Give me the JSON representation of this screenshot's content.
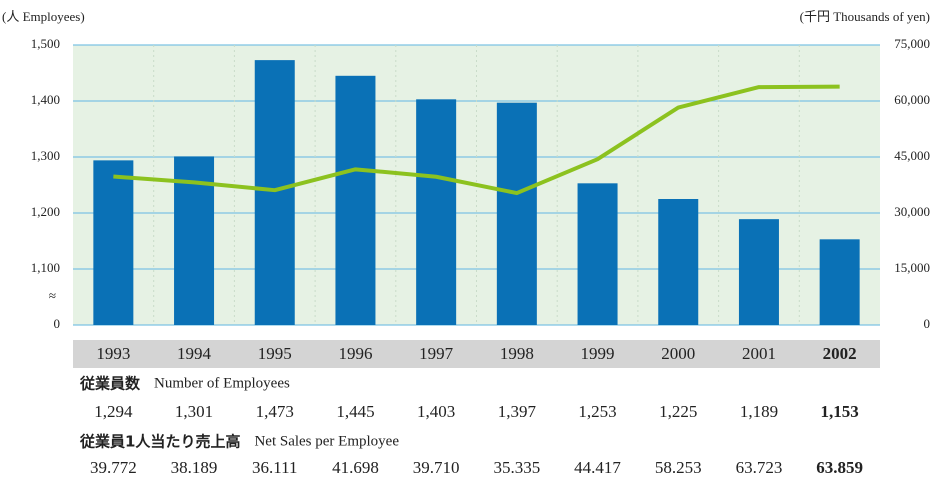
{
  "chart_data": {
    "type": "bar_line",
    "y_axis_label": "(人 Employees)",
    "y2_axis_label": "(千円 Thousands of yen)",
    "categories": [
      "1993",
      "1994",
      "1995",
      "1996",
      "1997",
      "1998",
      "1999",
      "2000",
      "2001",
      "2002"
    ],
    "highlight_category": "2002",
    "highlight_color": "#1a7bbf",
    "series": [
      {
        "name": "Number of Employees",
        "name_ja": "従業員数",
        "type": "bar",
        "color": "#0a71b6",
        "values": [
          1294,
          1301,
          1473,
          1445,
          1403,
          1397,
          1253,
          1225,
          1189,
          1153
        ],
        "value_labels": [
          "1,294",
          "1,301",
          "1,473",
          "1,445",
          "1,403",
          "1,397",
          "1,253",
          "1,225",
          "1,189",
          "1,153"
        ]
      },
      {
        "name": "Net Sales per Employee",
        "name_ja": "従業員1人当たり売上高",
        "type": "line",
        "color": "#8cc21f",
        "axis": "y2",
        "values": [
          39772,
          38189,
          36111,
          41698,
          39710,
          35335,
          44417,
          58253,
          63723,
          63859
        ],
        "value_labels": [
          "39.772",
          "38.189",
          "36.111",
          "41.698",
          "39.710",
          "35.335",
          "44.417",
          "58.253",
          "63.723",
          "63.859"
        ]
      }
    ],
    "ylim": [
      0,
      1500
    ],
    "y_break": {
      "from": 0,
      "to": 1000,
      "label": "≈"
    },
    "yticks": [
      0,
      {
        "value": 1100,
        "label": "1,100"
      },
      {
        "value": 1200,
        "label": "1,200"
      },
      {
        "value": 1300,
        "label": "1,300"
      },
      {
        "value": 1400,
        "label": "1,400"
      },
      {
        "value": 1500,
        "label": "1,500"
      }
    ],
    "y2lim": [
      0,
      75000
    ],
    "y2ticks": [
      0,
      {
        "value": 15000,
        "label": "15,000"
      },
      {
        "value": 30000,
        "label": "30,000"
      },
      {
        "value": 45000,
        "label": "45,000"
      },
      {
        "value": 60000,
        "label": "60,000"
      },
      {
        "value": 75000,
        "label": "75,000"
      }
    ],
    "grid": true
  }
}
